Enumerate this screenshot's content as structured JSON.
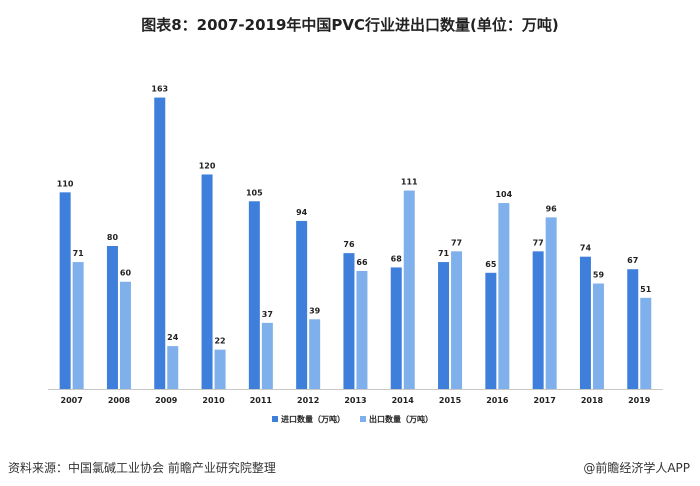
{
  "title": "图表8：2007-2019年中国PVC行业进出口数量(单位：万吨)",
  "footer": {
    "source": "资料来源：中国氯碱工业协会 前瞻产业研究院整理",
    "brand": "@前瞻经济学人APP"
  },
  "colors": {
    "import": "#3f7fdc",
    "export": "#7fb0ec",
    "axis": "#c8c8c8"
  },
  "chart_data": {
    "type": "bar",
    "title": "图表8：2007-2019年中国PVC行业进出口数量(单位：万吨)",
    "categories": [
      "2007",
      "2008",
      "2009",
      "2010",
      "2011",
      "2012",
      "2013",
      "2014",
      "2015",
      "2016",
      "2017",
      "2018",
      "2019"
    ],
    "series": [
      {
        "name": "进口数量（万吨）",
        "values": [
          110,
          80,
          163,
          120,
          105,
          94,
          76,
          68,
          71,
          65,
          77,
          74,
          67
        ]
      },
      {
        "name": "出口数量（万吨）",
        "values": [
          71,
          60,
          24,
          22,
          37,
          39,
          66,
          111,
          77,
          104,
          96,
          59,
          51
        ]
      }
    ],
    "ylim": [
      0,
      165
    ],
    "legend": "bottom",
    "grid": false
  }
}
